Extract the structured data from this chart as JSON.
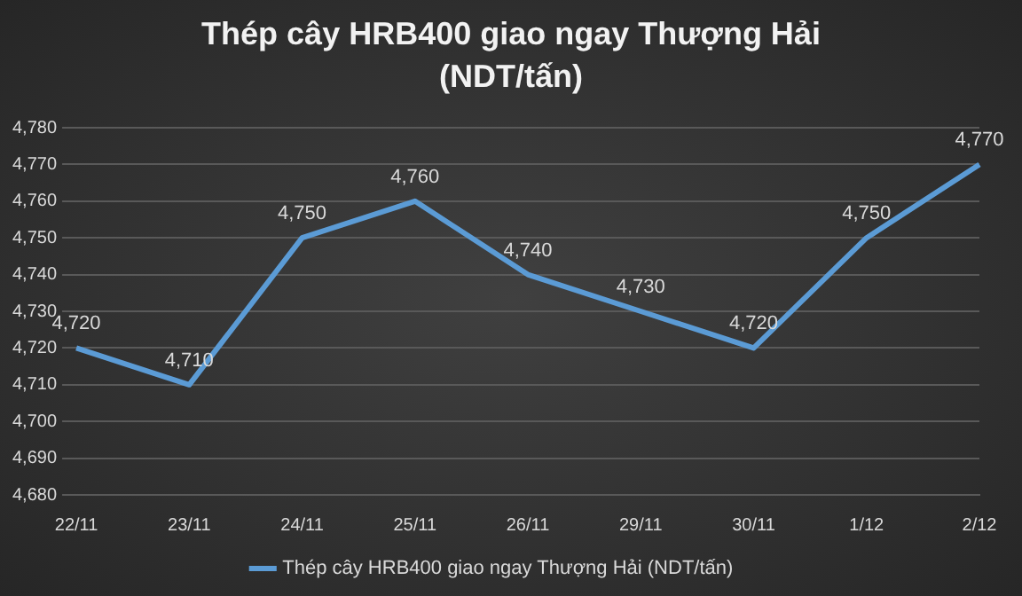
{
  "chart_data": {
    "type": "line",
    "title": "Thép cây HRB400 giao ngay Thượng Hải (NDT/tấn)",
    "categories": [
      "22/11",
      "23/11",
      "24/11",
      "25/11",
      "26/11",
      "29/11",
      "30/11",
      "1/12",
      "2/12"
    ],
    "series": [
      {
        "name": "Thép cây HRB400 giao ngay Thượng Hải (NDT/tấn)",
        "color": "#5b9bd5",
        "values": [
          4720,
          4710,
          4750,
          4760,
          4740,
          4730,
          4720,
          4750,
          4770
        ],
        "value_labels": [
          "4,720",
          "4,710",
          "4,750",
          "4,760",
          "4,740",
          "4,730",
          "4,720",
          "4,750",
          "4,770"
        ]
      }
    ],
    "ylim": [
      4680,
      4780
    ],
    "yticks": [
      {
        "value": 4680,
        "label": "4,680"
      },
      {
        "value": 4690,
        "label": "4,690"
      },
      {
        "value": 4700,
        "label": "4,700"
      },
      {
        "value": 4710,
        "label": "4,710"
      },
      {
        "value": 4720,
        "label": "4,720"
      },
      {
        "value": 4730,
        "label": "4,730"
      },
      {
        "value": 4740,
        "label": "4,740"
      },
      {
        "value": 4750,
        "label": "4,750"
      },
      {
        "value": 4760,
        "label": "4,760"
      },
      {
        "value": 4770,
        "label": "4,770"
      },
      {
        "value": 4780,
        "label": "4,780"
      }
    ],
    "grid": "y",
    "legend": "bottom",
    "marker": "none",
    "line_style": "solid"
  }
}
